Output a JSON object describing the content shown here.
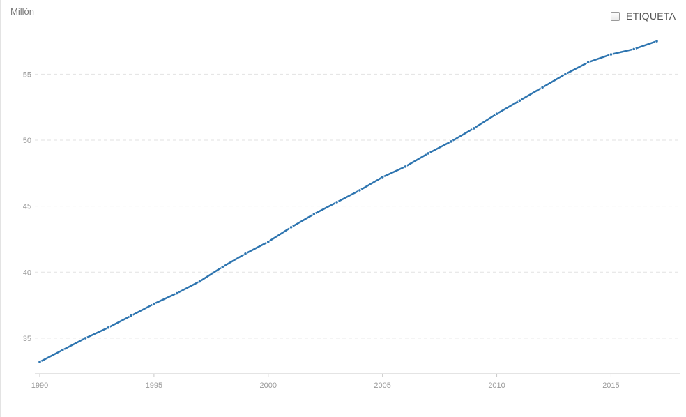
{
  "header": {
    "unit_label": "Millón",
    "label_toggle": "ETIQUETA"
  },
  "chart_data": {
    "type": "line",
    "xlabel": "",
    "ylabel": "Millón",
    "x": [
      1990,
      1991,
      1992,
      1993,
      1994,
      1995,
      1996,
      1997,
      1998,
      1999,
      2000,
      2001,
      2002,
      2003,
      2004,
      2005,
      2006,
      2007,
      2008,
      2009,
      2010,
      2011,
      2012,
      2013,
      2014,
      2015,
      2016,
      2017
    ],
    "series": [
      {
        "values": [
          33.2,
          34.1,
          35.0,
          35.8,
          36.7,
          37.6,
          38.4,
          39.3,
          40.4,
          41.4,
          42.3,
          43.4,
          44.4,
          45.3,
          46.2,
          47.2,
          48.0,
          49.0,
          49.9,
          50.9,
          52.0,
          53.0,
          54.0,
          55.0,
          55.9,
          56.5,
          56.9,
          57.5
        ],
        "color": "#2e75b0"
      }
    ],
    "x_ticks": [
      "1990",
      "1995",
      "2000",
      "2005",
      "2010",
      "2015"
    ],
    "y_ticks": [
      "35",
      "40",
      "45",
      "50",
      "55"
    ],
    "xlim": [
      1990,
      2018
    ],
    "ylim": [
      32.3,
      59.3
    ],
    "grid": true,
    "grid_style": "dashed horizontal",
    "label_toggle_checked": false
  }
}
